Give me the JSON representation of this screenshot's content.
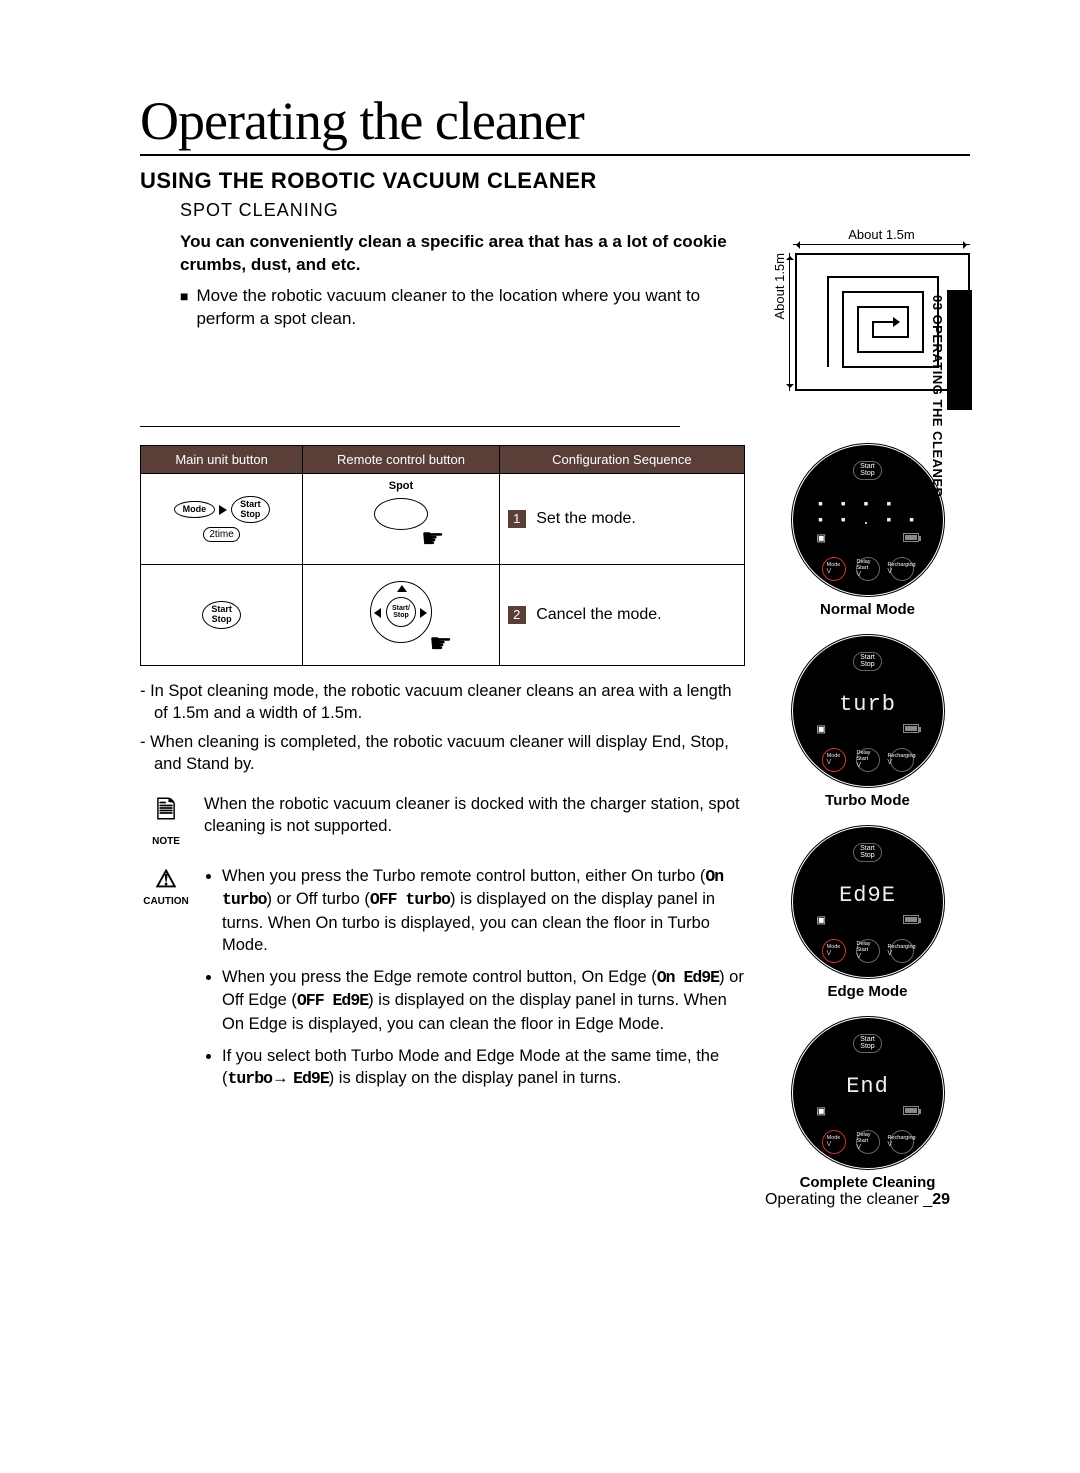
{
  "sideTab": "03  OPERATING THE CLEANER",
  "title": "Operating the cleaner",
  "sectionHead": "USING THE ROBOTIC VACUUM CLEANER",
  "subsection": "SPOT CLEANING",
  "intro": {
    "boldLine": "You can conveniently clean a specific area that has a a lot of cookie crumbs, dust, and etc.",
    "bullet": "Move the robotic vacuum cleaner to the location where you want to perform a spot clean."
  },
  "diagram": {
    "dimH": "About 1.5m",
    "dimV": "About 1.5m"
  },
  "table": {
    "headers": [
      "Main unit button",
      "Remote control button",
      "Configuration Sequence"
    ],
    "row1": {
      "mainMode": "Mode",
      "mainStart": "Start\nStop",
      "tag": "2time",
      "remoteLabel": "Spot",
      "stepNum": "1",
      "stepText": "Set the mode."
    },
    "row2": {
      "mainStart": "Start\nStop",
      "remoteCenter": "Start/\nStop",
      "stepNum": "2",
      "stepText": "Cancel the mode."
    }
  },
  "notes": {
    "n1": "- In Spot cleaning mode, the robotic vacuum cleaner cleans an area with a length of 1.5m and a width of 1.5m.",
    "n2": "- When cleaning is completed, the robotic vacuum cleaner will display End, Stop, and Stand by."
  },
  "noteBox": {
    "label": "NOTE",
    "text": "When the robotic vacuum cleaner is docked with the charger station, spot cleaning is not supported."
  },
  "cautionBox": {
    "label": "CAUTION",
    "items": [
      {
        "pre": "When you press the Turbo remote control button, either On turbo (",
        "seg1": "On  turbo",
        "mid": ") or Off turbo (",
        "seg2": "OFF turbo",
        "post": ") is displayed on the display panel in turns. When On turbo is displayed, you can clean the floor in Turbo Mode."
      },
      {
        "pre": "When you press the Edge remote control button, On Edge (",
        "seg1": "On Ed9E",
        "mid": ") or Off Edge (",
        "seg2": "OFF  Ed9E",
        "post": ") is displayed on the display panel in turns. When On Edge is displayed, you can clean the floor in Edge Mode."
      },
      {
        "pre": "If you select both Turbo Mode and Edge Mode at the same time, the (",
        "seg1": "turbo",
        "arrow": "→",
        "seg2": "Ed9E",
        "post": ") is display on the display panel in turns."
      }
    ]
  },
  "displays": [
    {
      "seg": "",
      "dots": true,
      "label": "Normal Mode"
    },
    {
      "seg": "turb",
      "label": "Turbo Mode"
    },
    {
      "seg": "Ed9E",
      "label": "Edge Mode"
    },
    {
      "seg": "End",
      "label": "Complete Cleaning"
    }
  ],
  "displayButtons": {
    "top": "Start\nStop",
    "b1": "Mode",
    "b2": "Delay\nStart",
    "b3": "Recharging"
  },
  "footer": {
    "text": "Operating the cleaner _",
    "page": "29"
  }
}
